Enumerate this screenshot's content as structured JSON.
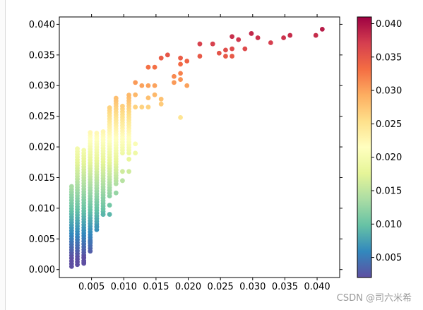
{
  "chart_data": {
    "type": "scatter",
    "title": "",
    "xlabel": "",
    "ylabel": "",
    "xlim": [
      0.0,
      0.0435
    ],
    "ylim": [
      -0.0013,
      0.0412
    ],
    "x_ticks": [
      0.005,
      0.01,
      0.015,
      0.02,
      0.025,
      0.03,
      0.035,
      0.04
    ],
    "x_tick_labels": [
      "0.005",
      "0.010",
      "0.015",
      "0.020",
      "0.025",
      "0.030",
      "0.035",
      "0.040"
    ],
    "y_ticks": [
      0.0,
      0.005,
      0.01,
      0.015,
      0.02,
      0.025,
      0.03,
      0.035,
      0.04
    ],
    "y_tick_labels": [
      "0.000",
      "0.005",
      "0.010",
      "0.015",
      "0.020",
      "0.025",
      "0.030",
      "0.035",
      "0.040"
    ],
    "grid": false,
    "legend": "none",
    "colormap": "Spectral_r",
    "colorbar": {
      "range": [
        0.002,
        0.041
      ],
      "ticks": [
        0.005,
        0.01,
        0.015,
        0.02,
        0.025,
        0.03,
        0.035,
        0.04
      ],
      "tick_labels": [
        "0.005",
        "0.010",
        "0.015",
        "0.020",
        "0.025",
        "0.030",
        "0.035",
        "0.040"
      ],
      "colors": [
        "#5e4fa2",
        "#3288bd",
        "#66c2a5",
        "#abdda4",
        "#e6f598",
        "#ffffbf",
        "#fee08b",
        "#fdae61",
        "#f46d43",
        "#d53e4f",
        "#9e0142"
      ]
    },
    "columns": [
      {
        "x": 0.0019,
        "y": [
          0.0005,
          0.0138
        ]
      },
      {
        "x": 0.0028,
        "y": [
          0.0008,
          0.02
        ]
      },
      {
        "x": 0.0038,
        "y": [
          0.001,
          0.0198
        ]
      },
      {
        "x": 0.0048,
        "y": [
          0.003,
          0.0225
        ]
      },
      {
        "x": 0.0058,
        "y": [
          0.0065,
          0.0225
        ]
      },
      {
        "x": 0.0068,
        "y": [
          0.009,
          0.0225
        ]
      },
      {
        "x": 0.0078,
        "y": [
          0.012,
          0.0265
        ]
      },
      {
        "x": 0.0088,
        "y": [
          0.014,
          0.028
        ]
      },
      {
        "x": 0.0098,
        "y": [
          0.019,
          0.027
        ]
      },
      {
        "x": 0.0108,
        "y": [
          0.019,
          0.0285
        ]
      }
    ],
    "points": [
      {
        "x": 0.0038,
        "y": 0.0012
      },
      {
        "x": 0.0038,
        "y": 0.002
      },
      {
        "x": 0.0048,
        "y": 0.0045
      },
      {
        "x": 0.0058,
        "y": 0.007
      },
      {
        "x": 0.0068,
        "y": 0.009
      },
      {
        "x": 0.0078,
        "y": 0.009
      },
      {
        "x": 0.0078,
        "y": 0.0105
      },
      {
        "x": 0.0088,
        "y": 0.0125
      },
      {
        "x": 0.0098,
        "y": 0.0145
      },
      {
        "x": 0.0098,
        "y": 0.016
      },
      {
        "x": 0.0108,
        "y": 0.016
      },
      {
        "x": 0.0108,
        "y": 0.018
      },
      {
        "x": 0.0118,
        "y": 0.019
      },
      {
        "x": 0.0118,
        "y": 0.0205
      },
      {
        "x": 0.0118,
        "y": 0.0265
      },
      {
        "x": 0.0118,
        "y": 0.0285
      },
      {
        "x": 0.0118,
        "y": 0.0305
      },
      {
        "x": 0.0128,
        "y": 0.0265
      },
      {
        "x": 0.0128,
        "y": 0.03
      },
      {
        "x": 0.0138,
        "y": 0.0265
      },
      {
        "x": 0.0138,
        "y": 0.028
      },
      {
        "x": 0.0138,
        "y": 0.03
      },
      {
        "x": 0.0138,
        "y": 0.033
      },
      {
        "x": 0.0148,
        "y": 0.0285
      },
      {
        "x": 0.0148,
        "y": 0.03
      },
      {
        "x": 0.0148,
        "y": 0.033
      },
      {
        "x": 0.0158,
        "y": 0.027
      },
      {
        "x": 0.0158,
        "y": 0.0278
      },
      {
        "x": 0.0158,
        "y": 0.0345
      },
      {
        "x": 0.0168,
        "y": 0.035
      },
      {
        "x": 0.0178,
        "y": 0.0305
      },
      {
        "x": 0.0178,
        "y": 0.0315
      },
      {
        "x": 0.0188,
        "y": 0.0248
      },
      {
        "x": 0.0188,
        "y": 0.031
      },
      {
        "x": 0.0188,
        "y": 0.032
      },
      {
        "x": 0.0188,
        "y": 0.0335
      },
      {
        "x": 0.0188,
        "y": 0.0345
      },
      {
        "x": 0.0198,
        "y": 0.03
      },
      {
        "x": 0.0198,
        "y": 0.034
      },
      {
        "x": 0.0218,
        "y": 0.0348
      },
      {
        "x": 0.0218,
        "y": 0.0368
      },
      {
        "x": 0.0238,
        "y": 0.0368
      },
      {
        "x": 0.0248,
        "y": 0.0353
      },
      {
        "x": 0.0258,
        "y": 0.0348
      },
      {
        "x": 0.0258,
        "y": 0.0358
      },
      {
        "x": 0.0268,
        "y": 0.0348
      },
      {
        "x": 0.0268,
        "y": 0.036
      },
      {
        "x": 0.0268,
        "y": 0.038
      },
      {
        "x": 0.0278,
        "y": 0.0375
      },
      {
        "x": 0.0288,
        "y": 0.036
      },
      {
        "x": 0.0298,
        "y": 0.0385
      },
      {
        "x": 0.0308,
        "y": 0.0378
      },
      {
        "x": 0.0328,
        "y": 0.037
      },
      {
        "x": 0.0348,
        "y": 0.0378
      },
      {
        "x": 0.0358,
        "y": 0.0382
      },
      {
        "x": 0.0398,
        "y": 0.0382
      },
      {
        "x": 0.0408,
        "y": 0.0392
      }
    ]
  },
  "watermark": "CSDN @司六米希"
}
